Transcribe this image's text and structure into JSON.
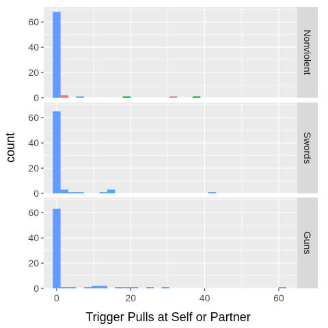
{
  "chart_data": {
    "type": "bar",
    "xlabel": "Trigger Pulls at Self or Partner",
    "ylabel": "count",
    "x_ticks": [
      0,
      20,
      40,
      60
    ],
    "y_ticks": [
      0,
      20,
      40,
      60
    ],
    "xlim": [
      -3.5,
      65
    ],
    "ylim": [
      0,
      72
    ],
    "bin_width": 2.1,
    "series_colors": {
      "red": "#F8766D",
      "green": "#00BA38",
      "blue": "#619CFF"
    },
    "panel_background": "#EBEBEB",
    "strip_background": "#D9D9D9",
    "grid": true,
    "panels": [
      {
        "label": "Nonviolent",
        "bars": [
          {
            "x": 0,
            "count": 68,
            "color": "blue"
          },
          {
            "x": 2.1,
            "count": 2,
            "color": "red"
          },
          {
            "x": 6.3,
            "count": 1,
            "color": "blue"
          },
          {
            "x": 18.9,
            "count": 1,
            "color": "green"
          },
          {
            "x": 31.5,
            "count": 1,
            "color": "red"
          },
          {
            "x": 37.8,
            "count": 1,
            "color": "green"
          }
        ]
      },
      {
        "label": "Swords",
        "bars": [
          {
            "x": 0,
            "count": 65,
            "color": "blue"
          },
          {
            "x": 2.1,
            "count": 3,
            "color": "blue"
          },
          {
            "x": 4.2,
            "count": 1,
            "color": "blue"
          },
          {
            "x": 6.3,
            "count": 1,
            "color": "blue"
          },
          {
            "x": 12.6,
            "count": 1,
            "color": "blue"
          },
          {
            "x": 14.7,
            "count": 3,
            "color": "blue"
          },
          {
            "x": 42.0,
            "count": 1,
            "color": "blue"
          }
        ]
      },
      {
        "label": "Guns",
        "bars": [
          {
            "x": 0,
            "count": 63,
            "color": "blue"
          },
          {
            "x": 2.1,
            "count": 1,
            "color": "blue"
          },
          {
            "x": 4.2,
            "count": 1,
            "color": "blue"
          },
          {
            "x": 8.4,
            "count": 1,
            "color": "blue"
          },
          {
            "x": 10.5,
            "count": 2,
            "color": "blue"
          },
          {
            "x": 12.6,
            "count": 2,
            "color": "blue"
          },
          {
            "x": 16.8,
            "count": 1,
            "color": "blue"
          },
          {
            "x": 18.9,
            "count": 1,
            "color": "blue"
          },
          {
            "x": 21.0,
            "count": 1,
            "color": "blue"
          },
          {
            "x": 25.2,
            "count": 1,
            "color": "blue"
          },
          {
            "x": 29.4,
            "count": 1,
            "color": "blue"
          },
          {
            "x": 61.0,
            "count": 1,
            "color": "blue"
          }
        ]
      }
    ]
  }
}
